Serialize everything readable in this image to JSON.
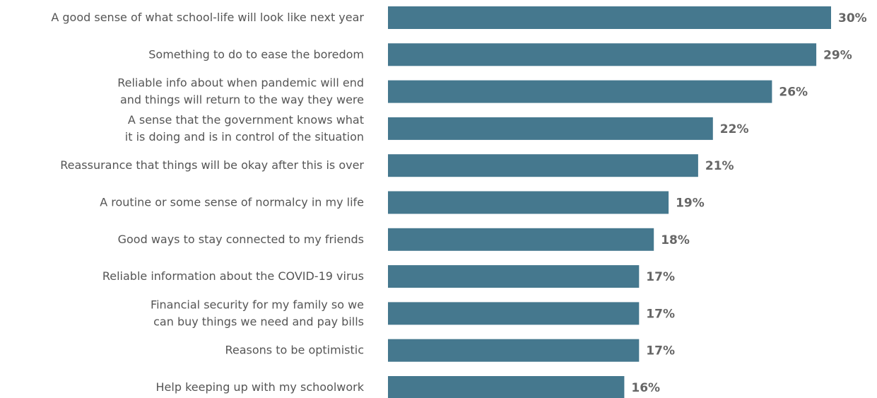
{
  "chart_data": {
    "type": "bar",
    "orientation": "horizontal",
    "color": "#45788e",
    "categories": [
      "A good sense of what school-life will look like next year",
      "Something to do to ease the boredom",
      "Reliable info about when pandemic will end\nand things will return to the way they were",
      "A sense that the government knows what\nit is doing and is in control of the situation",
      "Reassurance that things will be okay after this is over",
      "A routine or some sense of normalcy in my life",
      "Good ways to stay connected to my friends",
      "Reliable information about the COVID-19 virus",
      "Financial security for my family so we\ncan buy things we need and pay bills",
      "Reasons to be optimistic",
      "Help keeping up with my schoolwork"
    ],
    "values": [
      30,
      29,
      26,
      22,
      21,
      19,
      18,
      17,
      17,
      17,
      16
    ],
    "value_labels": [
      "30%",
      "29%",
      "26%",
      "22%",
      "21%",
      "19%",
      "18%",
      "17%",
      "17%",
      "17%",
      "16%"
    ]
  }
}
